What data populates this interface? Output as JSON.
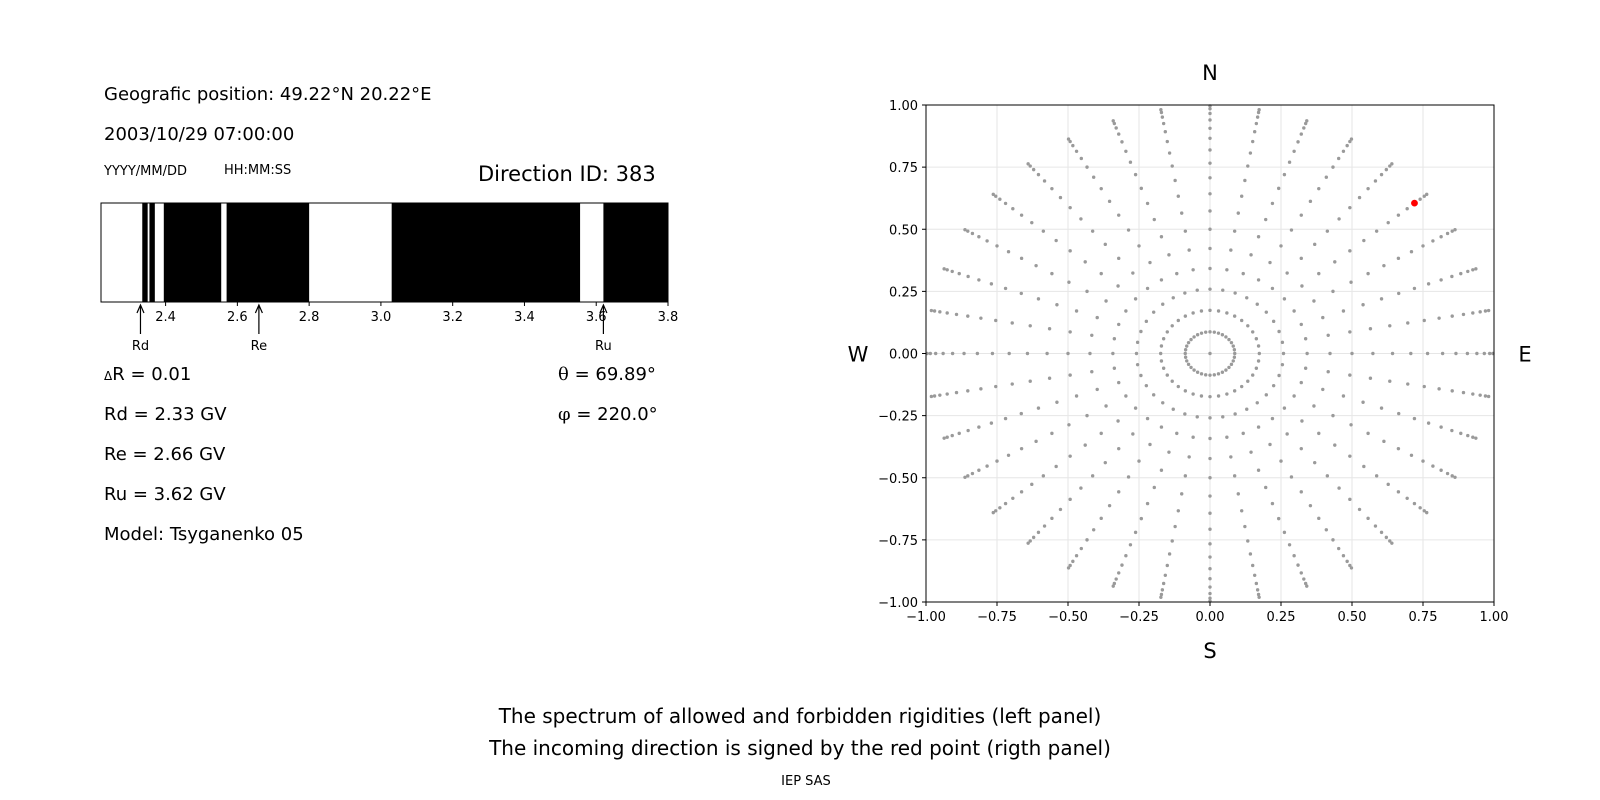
{
  "left_panel": {
    "position_line": "Geografic position: 49.22°N 20.22°E",
    "datetime_line": "2003/10/29 07:00:00",
    "date_format_label": "YYYY/MM/DD",
    "time_format_label": "HH:MM:SS",
    "direction_id_line": "Direction ID: 383",
    "delta_r_symbol": "Δ",
    "delta_r_text": "R = 0.01",
    "rd_line": "Rd = 2.33 GV",
    "re_line": "Re = 2.66 GV",
    "ru_line": "Ru = 3.62 GV",
    "model_line": "Model: Tsyganenko 05",
    "theta_symbol": "θ",
    "theta_text": "= 69.89°",
    "phi_symbol": "φ",
    "phi_text": "= 220.0°"
  },
  "footer": {
    "caption_line1": "The spectrum of allowed and forbidden rigidities (left panel)",
    "caption_line2": "The incoming direction is signed by the red point (rigth panel)",
    "credit": "IEP SAS"
  },
  "chart_data": [
    {
      "type": "bar",
      "title": "",
      "xlabel": "",
      "ylabel": "",
      "xlim": [
        2.22,
        3.8
      ],
      "xticks": [
        "2.4",
        "2.6",
        "2.8",
        "3.0",
        "3.2",
        "3.4",
        "3.6",
        "3.8"
      ],
      "forbidden_intervals": [
        [
          2.335,
          2.35
        ],
        [
          2.355,
          2.37
        ],
        [
          2.395,
          2.555
        ],
        [
          2.57,
          2.8
        ],
        [
          3.03,
          3.555
        ],
        [
          3.62,
          3.8
        ]
      ],
      "markers": [
        {
          "label": "Rd",
          "value": 2.33
        },
        {
          "label": "Re",
          "value": 2.66
        },
        {
          "label": "Ru",
          "value": 3.62
        }
      ],
      "colors": {
        "forbidden": "#000000",
        "allowed": "#ffffff"
      }
    },
    {
      "type": "scatter",
      "title": "",
      "xlabel": "",
      "ylabel": "",
      "xlim": [
        -1.0,
        1.0
      ],
      "ylim": [
        -1.0,
        1.0
      ],
      "xticks": [
        "−1.00",
        "−0.75",
        "−0.50",
        "−0.25",
        "0.00",
        "0.25",
        "0.50",
        "0.75",
        "1.00"
      ],
      "yticks": [
        "1.00",
        "0.75",
        "0.50",
        "0.25",
        "0.00",
        "−0.25",
        "−0.50",
        "−0.75",
        "−1.00"
      ],
      "compass": {
        "north": "N",
        "south": "S",
        "west": "W",
        "east": "E"
      },
      "grid": true,
      "grid_pattern": {
        "azimuth_step_deg": 10,
        "zenith_step_deg": 5,
        "zenith_max_deg": 85,
        "center_point": true
      },
      "highlight": {
        "theta_deg": 69.89,
        "phi_deg": 220.0,
        "x": 0.72,
        "y": 0.605
      },
      "colors": {
        "grid_points": "#9a9a9a",
        "highlight": "#ff0000",
        "gridlines": "#e6e6e6"
      }
    }
  ]
}
